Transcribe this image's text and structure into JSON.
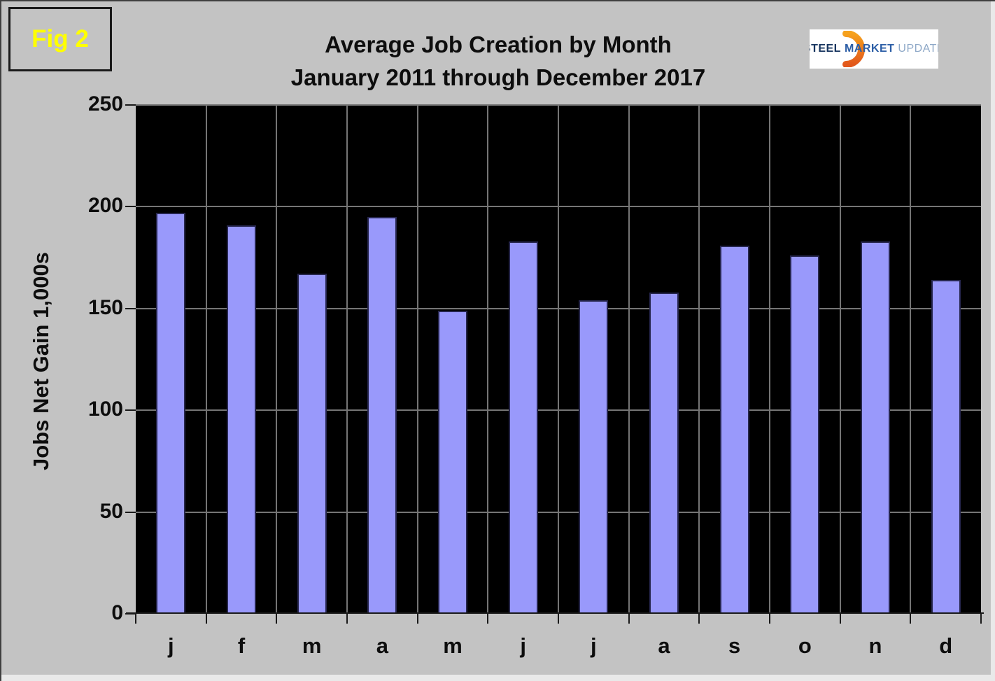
{
  "fig_label": "Fig 2",
  "header": {
    "title_line1": "Average Job Creation by Month",
    "title_line2": "January 2011 through December 2017"
  },
  "logo": {
    "steel": "STEEL",
    "market": "MARKET",
    "update": "UPDATE",
    "crescent_icon": "orange-crescent-swoosh",
    "steel_color": "#17355f",
    "market_color": "#2c5ea6",
    "update_color": "#8fa9c8",
    "crescent_color_top": "#f6a21d",
    "crescent_color_bottom": "#e2571b"
  },
  "chart_data": {
    "type": "bar",
    "title": "Average Job Creation by Month",
    "subtitle": "January 2011 through December 2017",
    "categories": [
      "j",
      "f",
      "m",
      "a",
      "m",
      "j",
      "j",
      "a",
      "s",
      "o",
      "n",
      "d"
    ],
    "values": [
      197,
      191,
      167,
      195,
      149,
      183,
      154,
      158,
      181,
      176,
      183,
      164
    ],
    "xlabel": "",
    "ylabel": "Jobs Net Gain 1,000s",
    "ylim": [
      0,
      250
    ],
    "yticks": [
      0,
      50,
      100,
      150,
      200,
      250
    ],
    "grid": true,
    "legend": false,
    "bar_color": "#9999fb",
    "bar_border_color": "#26264d",
    "plot_background": "#000000",
    "gridline_color": "#757575",
    "page_background": "#c3c3c3",
    "fig_label_color": "#ffff00"
  }
}
